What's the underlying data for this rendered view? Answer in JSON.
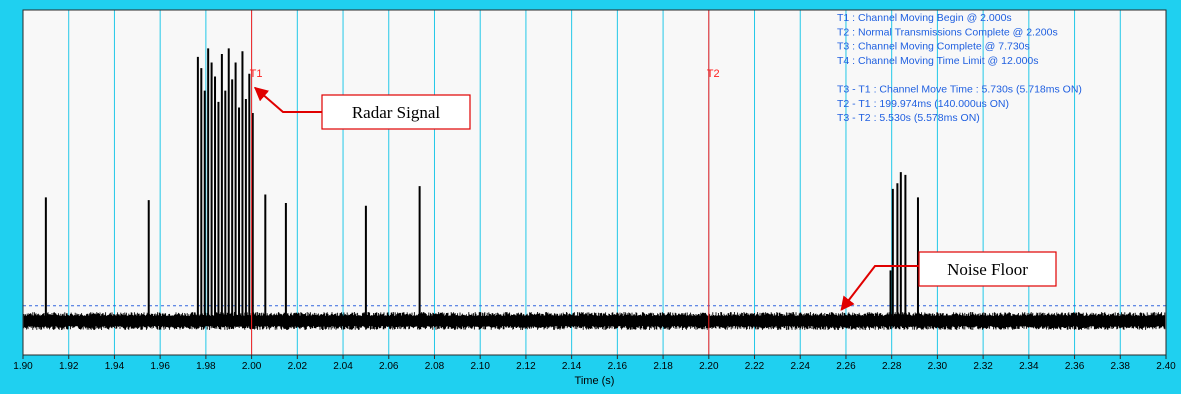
{
  "chart_data": {
    "type": "line",
    "xlabel": "Time (s)",
    "xlim": [
      1.9,
      2.4
    ],
    "x_ticks": [
      "1.90",
      "1.92",
      "1.94",
      "1.96",
      "1.98",
      "2.00",
      "2.02",
      "2.04",
      "2.06",
      "2.08",
      "2.10",
      "2.12",
      "2.14",
      "2.16",
      "2.18",
      "2.20",
      "2.22",
      "2.24",
      "2.26",
      "2.28",
      "2.30",
      "2.32",
      "2.34",
      "2.36",
      "2.38",
      "2.40"
    ],
    "grid": true,
    "noise_floor_level": 0.04,
    "cursors": [
      {
        "label": "T1",
        "x": 2.0
      },
      {
        "label": "T2",
        "x": 2.2
      }
    ],
    "pulses": [
      {
        "x": 1.91,
        "y": 0.44
      },
      {
        "x": 1.955,
        "y": 0.43
      },
      {
        "x": 1.9765,
        "y": 0.94
      },
      {
        "x": 1.978,
        "y": 0.9
      },
      {
        "x": 1.9795,
        "y": 0.82
      },
      {
        "x": 1.981,
        "y": 0.97
      },
      {
        "x": 1.9825,
        "y": 0.92
      },
      {
        "x": 1.984,
        "y": 0.87
      },
      {
        "x": 1.9855,
        "y": 0.78
      },
      {
        "x": 1.987,
        "y": 0.95
      },
      {
        "x": 1.9885,
        "y": 0.82
      },
      {
        "x": 1.99,
        "y": 0.97
      },
      {
        "x": 1.9915,
        "y": 0.86
      },
      {
        "x": 1.993,
        "y": 0.92
      },
      {
        "x": 1.9945,
        "y": 0.76
      },
      {
        "x": 1.996,
        "y": 0.96
      },
      {
        "x": 1.9975,
        "y": 0.79
      },
      {
        "x": 1.999,
        "y": 0.88
      },
      {
        "x": 2.0005,
        "y": 0.74
      },
      {
        "x": 2.006,
        "y": 0.45
      },
      {
        "x": 2.015,
        "y": 0.42
      },
      {
        "x": 2.05,
        "y": 0.41
      },
      {
        "x": 2.0735,
        "y": 0.48
      },
      {
        "x": 2.2795,
        "y": 0.18
      },
      {
        "x": 2.2805,
        "y": 0.47
      },
      {
        "x": 2.2825,
        "y": 0.49
      },
      {
        "x": 2.284,
        "y": 0.53
      },
      {
        "x": 2.286,
        "y": 0.52
      },
      {
        "x": 2.2915,
        "y": 0.44
      }
    ],
    "annotations": [
      "T1 : Channel Moving Begin @ 2.000s",
      "T2 : Normal Transmissions Complete @ 2.200s",
      "T3 : Channel Moving Complete @ 7.730s",
      "T4 : Channel Moving Time Limit @ 12.000s",
      "",
      "T3 - T1 : Channel Move Time : 5.730s (5.718ms ON)",
      "T2 - T1 : 199.974ms (140.000us ON)",
      "T3 - T2 : 5.530s (5.578ms ON)"
    ],
    "callouts": [
      {
        "text": "Radar Signal",
        "target_x": 2.0015,
        "target_y": 0.83
      },
      {
        "text": "Noise Floor",
        "target_x": 2.258,
        "target_y": 0.04
      }
    ]
  },
  "colors": {
    "frame": "#1fd0f0",
    "plot_bg": "#f8f8f8",
    "grid": "#22c8e8",
    "signal": "#000000",
    "cursor": "#ff2020",
    "threshold": "#3366dd",
    "annotation_text": "#1f5fe0",
    "callout": "#e00000"
  }
}
